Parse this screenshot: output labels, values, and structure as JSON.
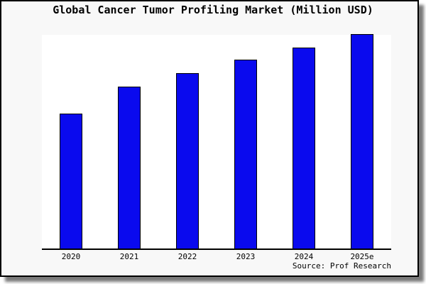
{
  "chart_data": {
    "type": "bar",
    "title": "Global Cancer Tumor Profiling Market (Million USD)",
    "categories": [
      "2020",
      "2021",
      "2022",
      "2023",
      "2024",
      "2025e"
    ],
    "values": [
      100,
      120,
      130,
      140,
      149,
      159
    ],
    "value_note": "no y-axis or data labels shown; values are relative bar heights indexed to 2020 = 100",
    "xlabel": "",
    "ylabel": "",
    "grid": false,
    "legend": "none",
    "source": "Source: Prof Research",
    "bar_color": "#0a0aee",
    "bar_border_color": "#000000"
  },
  "colors": {
    "canvas_bg": "#f8f8f8",
    "plot_bg": "#ffffff",
    "frame_border": "#000000",
    "shadow": "#7a7a7a",
    "text": "#000000"
  }
}
